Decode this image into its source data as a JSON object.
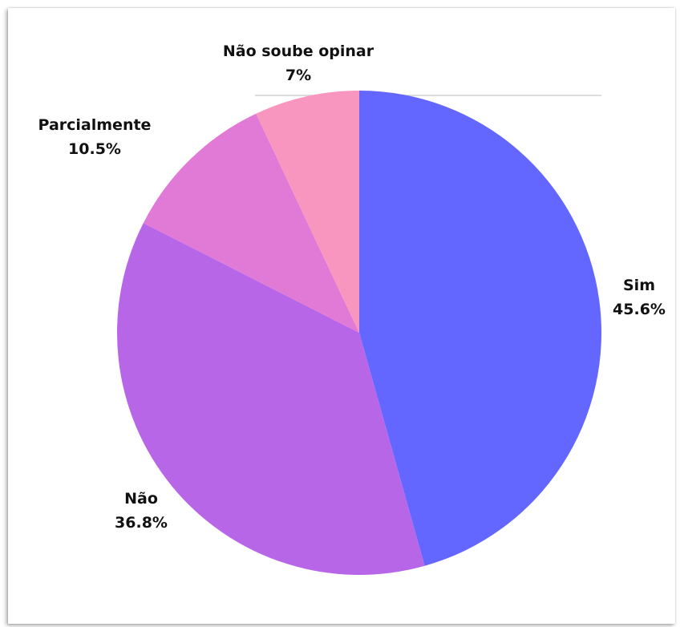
{
  "chart_data": {
    "type": "pie",
    "start_angle_deg": 0,
    "direction": "clockwise",
    "slices": [
      {
        "label": "Sim",
        "value_label": "45.6%",
        "value": 45.6,
        "color": "#6366ff"
      },
      {
        "label": "Não",
        "value_label": "36.8%",
        "value": 36.8,
        "color": "#b866e8"
      },
      {
        "label": "Parcialmente",
        "value_label": "10.5%",
        "value": 10.5,
        "color": "#e07ad6"
      },
      {
        "label": "Não soube opinar",
        "value_label": "7%",
        "value": 7,
        "color": "#f896c0"
      }
    ],
    "legend": "none"
  }
}
